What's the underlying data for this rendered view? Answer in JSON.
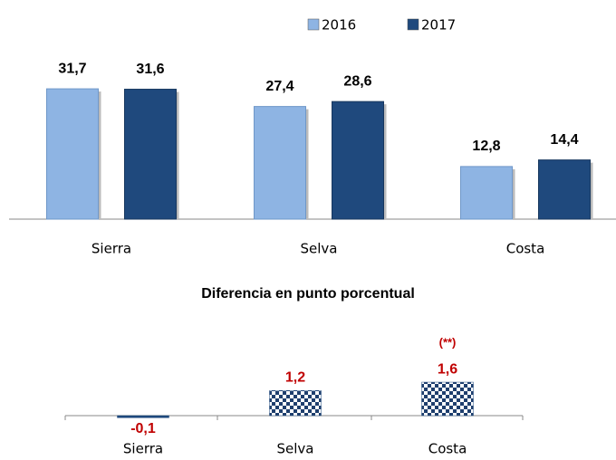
{
  "chart_data": [
    {
      "type": "bar",
      "categories": [
        "Sierra",
        "Selva",
        "Costa"
      ],
      "series": [
        {
          "name": "2016",
          "color": "#8eb4e3",
          "values": [
            31.7,
            27.4,
            12.8
          ],
          "value_labels": [
            "31,7",
            "27,4",
            "12,8"
          ]
        },
        {
          "name": "2017",
          "color": "#1f497d",
          "values": [
            31.6,
            28.6,
            14.4
          ],
          "value_labels": [
            "31,6",
            "28,6",
            "14,4"
          ]
        }
      ],
      "legend": "top"
    },
    {
      "type": "bar",
      "title": "Diferencia en punto porcentual",
      "categories": [
        "Sierra",
        "Selva",
        "Costa"
      ],
      "values": [
        -0.1,
        1.2,
        1.6
      ],
      "value_labels": [
        "-0,1",
        "1,2",
        "1,6"
      ],
      "color": "#1f497d",
      "label_color": "#c00000",
      "annotations": [
        {
          "text": "(**)",
          "category": "Costa"
        }
      ]
    }
  ]
}
